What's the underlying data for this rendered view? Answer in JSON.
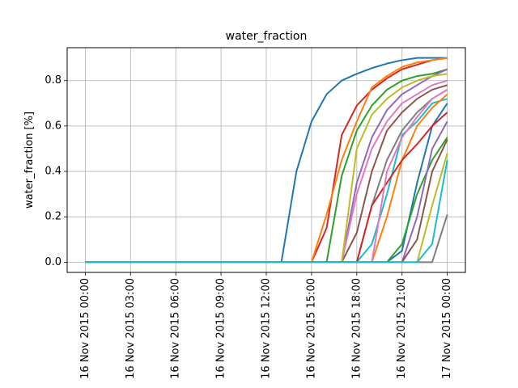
{
  "chart_data": {
    "type": "line",
    "title": "water_fraction",
    "y_label": "water_fraction  [%]",
    "x": [
      "2015-11-16T00:00",
      "2015-11-16T01:00",
      "2015-11-16T02:00",
      "2015-11-16T03:00",
      "2015-11-16T04:00",
      "2015-11-16T05:00",
      "2015-11-16T06:00",
      "2015-11-16T07:00",
      "2015-11-16T08:00",
      "2015-11-16T09:00",
      "2015-11-16T10:00",
      "2015-11-16T11:00",
      "2015-11-16T12:00",
      "2015-11-16T13:00",
      "2015-11-16T14:00",
      "2015-11-16T15:00",
      "2015-11-16T16:00",
      "2015-11-16T17:00",
      "2015-11-16T18:00",
      "2015-11-16T19:00",
      "2015-11-16T20:00",
      "2015-11-16T21:00",
      "2015-11-16T22:00",
      "2015-11-16T23:00",
      "2015-11-17T00:00"
    ],
    "xlim": [
      "2015-11-15T22:48",
      "2015-11-17T01:12"
    ],
    "xticks": [
      {
        "value": "2015-11-16T00:00",
        "label": "16 Nov 2015 00:00"
      },
      {
        "value": "2015-11-16T03:00",
        "label": "16 Nov 2015 03:00"
      },
      {
        "value": "2015-11-16T06:00",
        "label": "16 Nov 2015 06:00"
      },
      {
        "value": "2015-11-16T09:00",
        "label": "16 Nov 2015 09:00"
      },
      {
        "value": "2015-11-16T12:00",
        "label": "16 Nov 2015 12:00"
      },
      {
        "value": "2015-11-16T15:00",
        "label": "16 Nov 2015 15:00"
      },
      {
        "value": "2015-11-16T18:00",
        "label": "16 Nov 2015 18:00"
      },
      {
        "value": "2015-11-16T21:00",
        "label": "16 Nov 2015 21:00"
      },
      {
        "value": "2015-11-17T00:00",
        "label": "17 Nov 2015 00:00"
      }
    ],
    "ylim": [
      -0.045,
      0.945
    ],
    "yticks": [
      {
        "value": 0,
        "label": "0.0"
      },
      {
        "value": 0.2,
        "label": "0.2"
      },
      {
        "value": 0.4,
        "label": "0.4"
      },
      {
        "value": 0.6,
        "label": "0.6"
      },
      {
        "value": 0.8,
        "label": "0.8"
      }
    ],
    "grid": true,
    "series": [
      {
        "color": "#1f77b4",
        "values": [
          0,
          0,
          0,
          0,
          0,
          0,
          0,
          0,
          0,
          0,
          0,
          0,
          0,
          0,
          0.4,
          0.62,
          0.74,
          0.8,
          0.83,
          0.855,
          0.875,
          0.89,
          0.9,
          0.9,
          0.9
        ]
      },
      {
        "color": "#d62728",
        "values": [
          0,
          0,
          0,
          0,
          0,
          0,
          0,
          0,
          0,
          0,
          0,
          0,
          0,
          0,
          0,
          0,
          0.15,
          0.56,
          0.69,
          0.76,
          0.81,
          0.85,
          0.87,
          0.89,
          0.9
        ]
      },
      {
        "color": "#ff7f0e",
        "values": [
          0,
          0,
          0,
          0,
          0,
          0,
          0,
          0,
          0,
          0,
          0,
          0,
          0,
          0,
          0,
          0,
          0.21,
          0.45,
          0.62,
          0.77,
          0.82,
          0.86,
          0.88,
          0.89,
          0.9
        ]
      },
      {
        "color": "#2ca02c",
        "values": [
          0,
          0,
          0,
          0,
          0,
          0,
          0,
          0,
          0,
          0,
          0,
          0,
          0,
          0,
          0,
          0,
          0,
          0.38,
          0.58,
          0.69,
          0.76,
          0.8,
          0.82,
          0.83,
          0.85
        ]
      },
      {
        "color": "#9467bd",
        "values": [
          0,
          0,
          0,
          0,
          0,
          0,
          0,
          0,
          0,
          0,
          0,
          0,
          0,
          0,
          0,
          0,
          0,
          0,
          0.35,
          0.55,
          0.67,
          0.74,
          0.78,
          0.82,
          0.85
        ]
      },
      {
        "color": "#8c564b",
        "values": [
          0,
          0,
          0,
          0,
          0,
          0,
          0,
          0,
          0,
          0,
          0,
          0,
          0,
          0,
          0,
          0,
          0,
          0,
          0.13,
          0.4,
          0.58,
          0.66,
          0.72,
          0.76,
          0.78
        ]
      },
      {
        "color": "#e377c2",
        "values": [
          0,
          0,
          0,
          0,
          0,
          0,
          0,
          0,
          0,
          0,
          0,
          0,
          0,
          0,
          0,
          0,
          0,
          0,
          0.3,
          0.5,
          0.62,
          0.7,
          0.74,
          0.78,
          0.8
        ]
      },
      {
        "color": "#7f7f7f",
        "values": [
          0,
          0,
          0,
          0,
          0,
          0,
          0,
          0,
          0,
          0,
          0,
          0,
          0,
          0,
          0,
          0,
          0,
          0,
          0,
          0.25,
          0.45,
          0.58,
          0.66,
          0.72,
          0.76
        ]
      },
      {
        "color": "#bcbd22",
        "values": [
          0,
          0,
          0,
          0,
          0,
          0,
          0,
          0,
          0,
          0,
          0,
          0,
          0,
          0,
          0,
          0,
          0,
          0,
          0.5,
          0.65,
          0.72,
          0.77,
          0.8,
          0.82,
          0.83
        ]
      },
      {
        "color": "#17becf",
        "values": [
          0,
          0,
          0,
          0,
          0,
          0,
          0,
          0,
          0,
          0,
          0,
          0,
          0,
          0,
          0,
          0,
          0,
          0,
          0,
          0.08,
          0.3,
          0.56,
          0.62,
          0.7,
          0.72
        ]
      },
      {
        "color": "#1f77b4",
        "values": [
          0,
          0,
          0,
          0,
          0,
          0,
          0,
          0,
          0,
          0,
          0,
          0,
          0,
          0,
          0,
          0,
          0,
          0,
          0,
          0,
          0,
          0.05,
          0.35,
          0.6,
          0.7
        ]
      },
      {
        "color": "#ff7f0e",
        "values": [
          0,
          0,
          0,
          0,
          0,
          0,
          0,
          0,
          0,
          0,
          0,
          0,
          0,
          0,
          0,
          0,
          0,
          0,
          0,
          0,
          0.2,
          0.45,
          0.6,
          0.68,
          0.74
        ]
      },
      {
        "color": "#2ca02c",
        "values": [
          0,
          0,
          0,
          0,
          0,
          0,
          0,
          0,
          0,
          0,
          0,
          0,
          0,
          0,
          0,
          0,
          0,
          0,
          0,
          0,
          0,
          0.08,
          0.3,
          0.45,
          0.55
        ]
      },
      {
        "color": "#d62728",
        "values": [
          0,
          0,
          0,
          0,
          0,
          0,
          0,
          0,
          0,
          0,
          0,
          0,
          0,
          0,
          0,
          0,
          0,
          0,
          0,
          0.25,
          0.35,
          0.45,
          0.52,
          0.6,
          0.66
        ]
      },
      {
        "color": "#9467bd",
        "values": [
          0,
          0,
          0,
          0,
          0,
          0,
          0,
          0,
          0,
          0,
          0,
          0,
          0,
          0,
          0,
          0,
          0,
          0,
          0,
          0,
          0,
          0,
          0.2,
          0.5,
          0.62
        ]
      },
      {
        "color": "#8c564b",
        "values": [
          0,
          0,
          0,
          0,
          0,
          0,
          0,
          0,
          0,
          0,
          0,
          0,
          0,
          0,
          0,
          0,
          0,
          0,
          0,
          0,
          0,
          0,
          0.1,
          0.4,
          0.54
        ]
      },
      {
        "color": "#e377c2",
        "values": [
          0,
          0,
          0,
          0,
          0,
          0,
          0,
          0,
          0,
          0,
          0,
          0,
          0,
          0,
          0,
          0,
          0,
          0,
          0,
          0,
          0.4,
          0.55,
          0.64,
          0.72,
          0.76
        ]
      },
      {
        "color": "#7f7f7f",
        "values": [
          0,
          0,
          0,
          0,
          0,
          0,
          0,
          0,
          0,
          0,
          0,
          0,
          0,
          0,
          0,
          0,
          0,
          0,
          0,
          0,
          0,
          0,
          0,
          0,
          0.21
        ]
      },
      {
        "color": "#bcbd22",
        "values": [
          0,
          0,
          0,
          0,
          0,
          0,
          0,
          0,
          0,
          0,
          0,
          0,
          0,
          0,
          0,
          0,
          0,
          0,
          0,
          0,
          0,
          0,
          0,
          0.25,
          0.48
        ]
      },
      {
        "color": "#17becf",
        "values": [
          0,
          0,
          0,
          0,
          0,
          0,
          0,
          0,
          0,
          0,
          0,
          0,
          0,
          0,
          0,
          0,
          0,
          0,
          0,
          0,
          0,
          0,
          0,
          0.08,
          0.45
        ]
      }
    ]
  }
}
